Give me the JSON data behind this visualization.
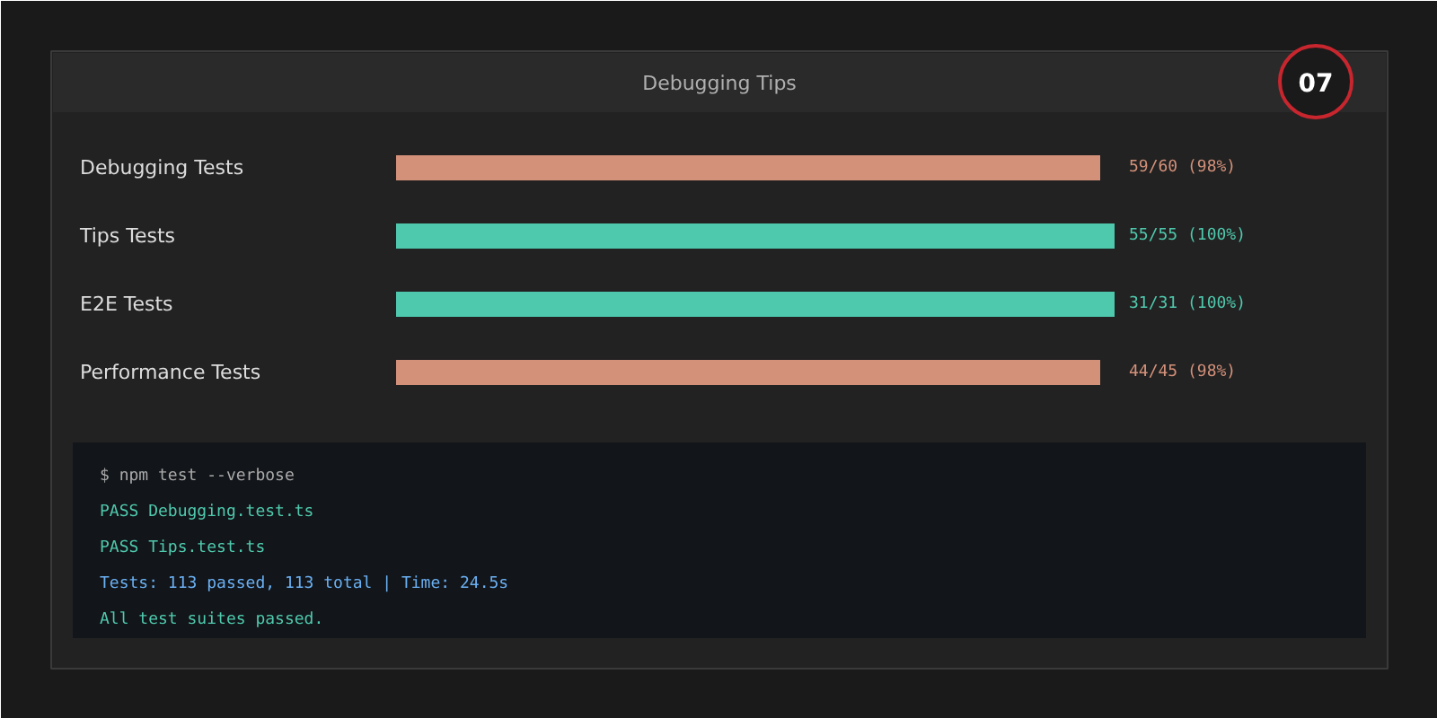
{
  "chart_data": {
    "type": "bar",
    "orientation": "horizontal",
    "title": "Debugging Tips",
    "categories": [
      "Debugging Tests",
      "Tips Tests",
      "E2E Tests",
      "Performance Tests"
    ],
    "values": [
      98,
      100,
      100,
      98
    ],
    "colors": [
      "#d4917a",
      "#4fc9ad",
      "#4fc9ad",
      "#d4917a"
    ],
    "value_labels": [
      "59/60 (98%)",
      "55/55 (100%)",
      "31/31 (100%)",
      "44/45 (98%)"
    ],
    "xlim": [
      0,
      100
    ],
    "tick_labels": false,
    "grid": false,
    "annotations": [
      "07",
      "$ npm test --verbose",
      "PASS Debugging.test.ts",
      "PASS Tips.test.ts",
      "Tests: 113 passed, 113 total | Time: 24.5s",
      "All test suites passed."
    ]
  }
}
